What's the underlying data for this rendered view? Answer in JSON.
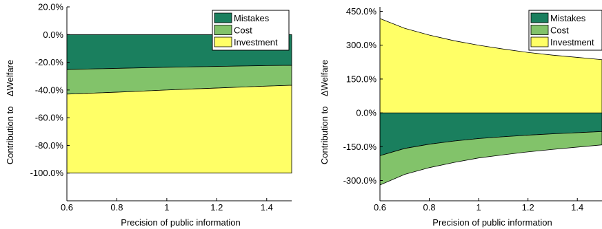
{
  "chart_data": [
    {
      "type": "area",
      "stacking": "signed",
      "xlabel": "Precision of public information",
      "ylabel": "Contribution to    ΔWelfare",
      "x": [
        0.6,
        0.7,
        0.8,
        0.9,
        1.0,
        1.1,
        1.2,
        1.3,
        1.4,
        1.5
      ],
      "xlim": [
        0.6,
        1.5
      ],
      "ylim": [
        -120,
        20
      ],
      "xticks": [
        0.6,
        0.8,
        1.0,
        1.2,
        1.4
      ],
      "xtick_labels": [
        "0.6",
        "0.8",
        "1",
        "1.2",
        "1.4"
      ],
      "yticks": [
        20,
        0,
        -20,
        -40,
        -60,
        -80,
        -100
      ],
      "ytick_labels": [
        "20.0%",
        "0.0%",
        "-20.0%",
        "-40.0%",
        "-60.0%",
        "-80.0%",
        "-100.0%"
      ],
      "legend_position": "top-right",
      "series": [
        {
          "name": "Mistakes",
          "color": "#1a7f5e",
          "values": [
            -25.2,
            -24.8,
            -24.4,
            -24.0,
            -23.6,
            -23.3,
            -23.0,
            -22.7,
            -22.4,
            -22.2
          ]
        },
        {
          "name": "Cost",
          "color": "#82c36a",
          "values": [
            -17.8,
            -17.5,
            -17.2,
            -16.8,
            -16.4,
            -16.0,
            -15.6,
            -15.2,
            -14.8,
            -14.4
          ]
        },
        {
          "name": "Investment",
          "color": "#ffff66",
          "values": [
            -57.0,
            -57.7,
            -58.4,
            -59.2,
            -60.0,
            -60.7,
            -61.4,
            -62.1,
            -62.8,
            -63.4
          ]
        }
      ]
    },
    {
      "type": "area",
      "stacking": "signed",
      "xlabel": "Precision of public information",
      "ylabel": "Contribution to    ΔWelfare",
      "x": [
        0.6,
        0.7,
        0.8,
        0.9,
        1.0,
        1.1,
        1.2,
        1.3,
        1.4,
        1.5
      ],
      "xlim": [
        0.6,
        1.5
      ],
      "ylim": [
        -390,
        470
      ],
      "xticks": [
        0.6,
        0.8,
        1.0,
        1.2,
        1.4
      ],
      "xtick_labels": [
        "0.6",
        "0.8",
        "1",
        "1.2",
        "1.4"
      ],
      "yticks": [
        450,
        300,
        150,
        0,
        -150,
        -300
      ],
      "ytick_labels": [
        "450.0%",
        "300.0%",
        "150.0%",
        "0.0%",
        "-150.0%",
        "-300.0%"
      ],
      "legend_position": "top-right",
      "series": [
        {
          "name": "Mistakes",
          "color": "#1a7f5e",
          "values": [
            -190,
            -158,
            -139,
            -125,
            -114,
            -106,
            -99,
            -93,
            -88,
            -83
          ]
        },
        {
          "name": "Cost",
          "color": "#82c36a",
          "values": [
            -130,
            -115,
            -104,
            -95,
            -86,
            -80,
            -74,
            -69,
            -64,
            -59
          ]
        },
        {
          "name": "Investment",
          "color": "#ffff66",
          "values": [
            418,
            375,
            345,
            320,
            300,
            283,
            268,
            256,
            246,
            236
          ]
        }
      ]
    }
  ]
}
